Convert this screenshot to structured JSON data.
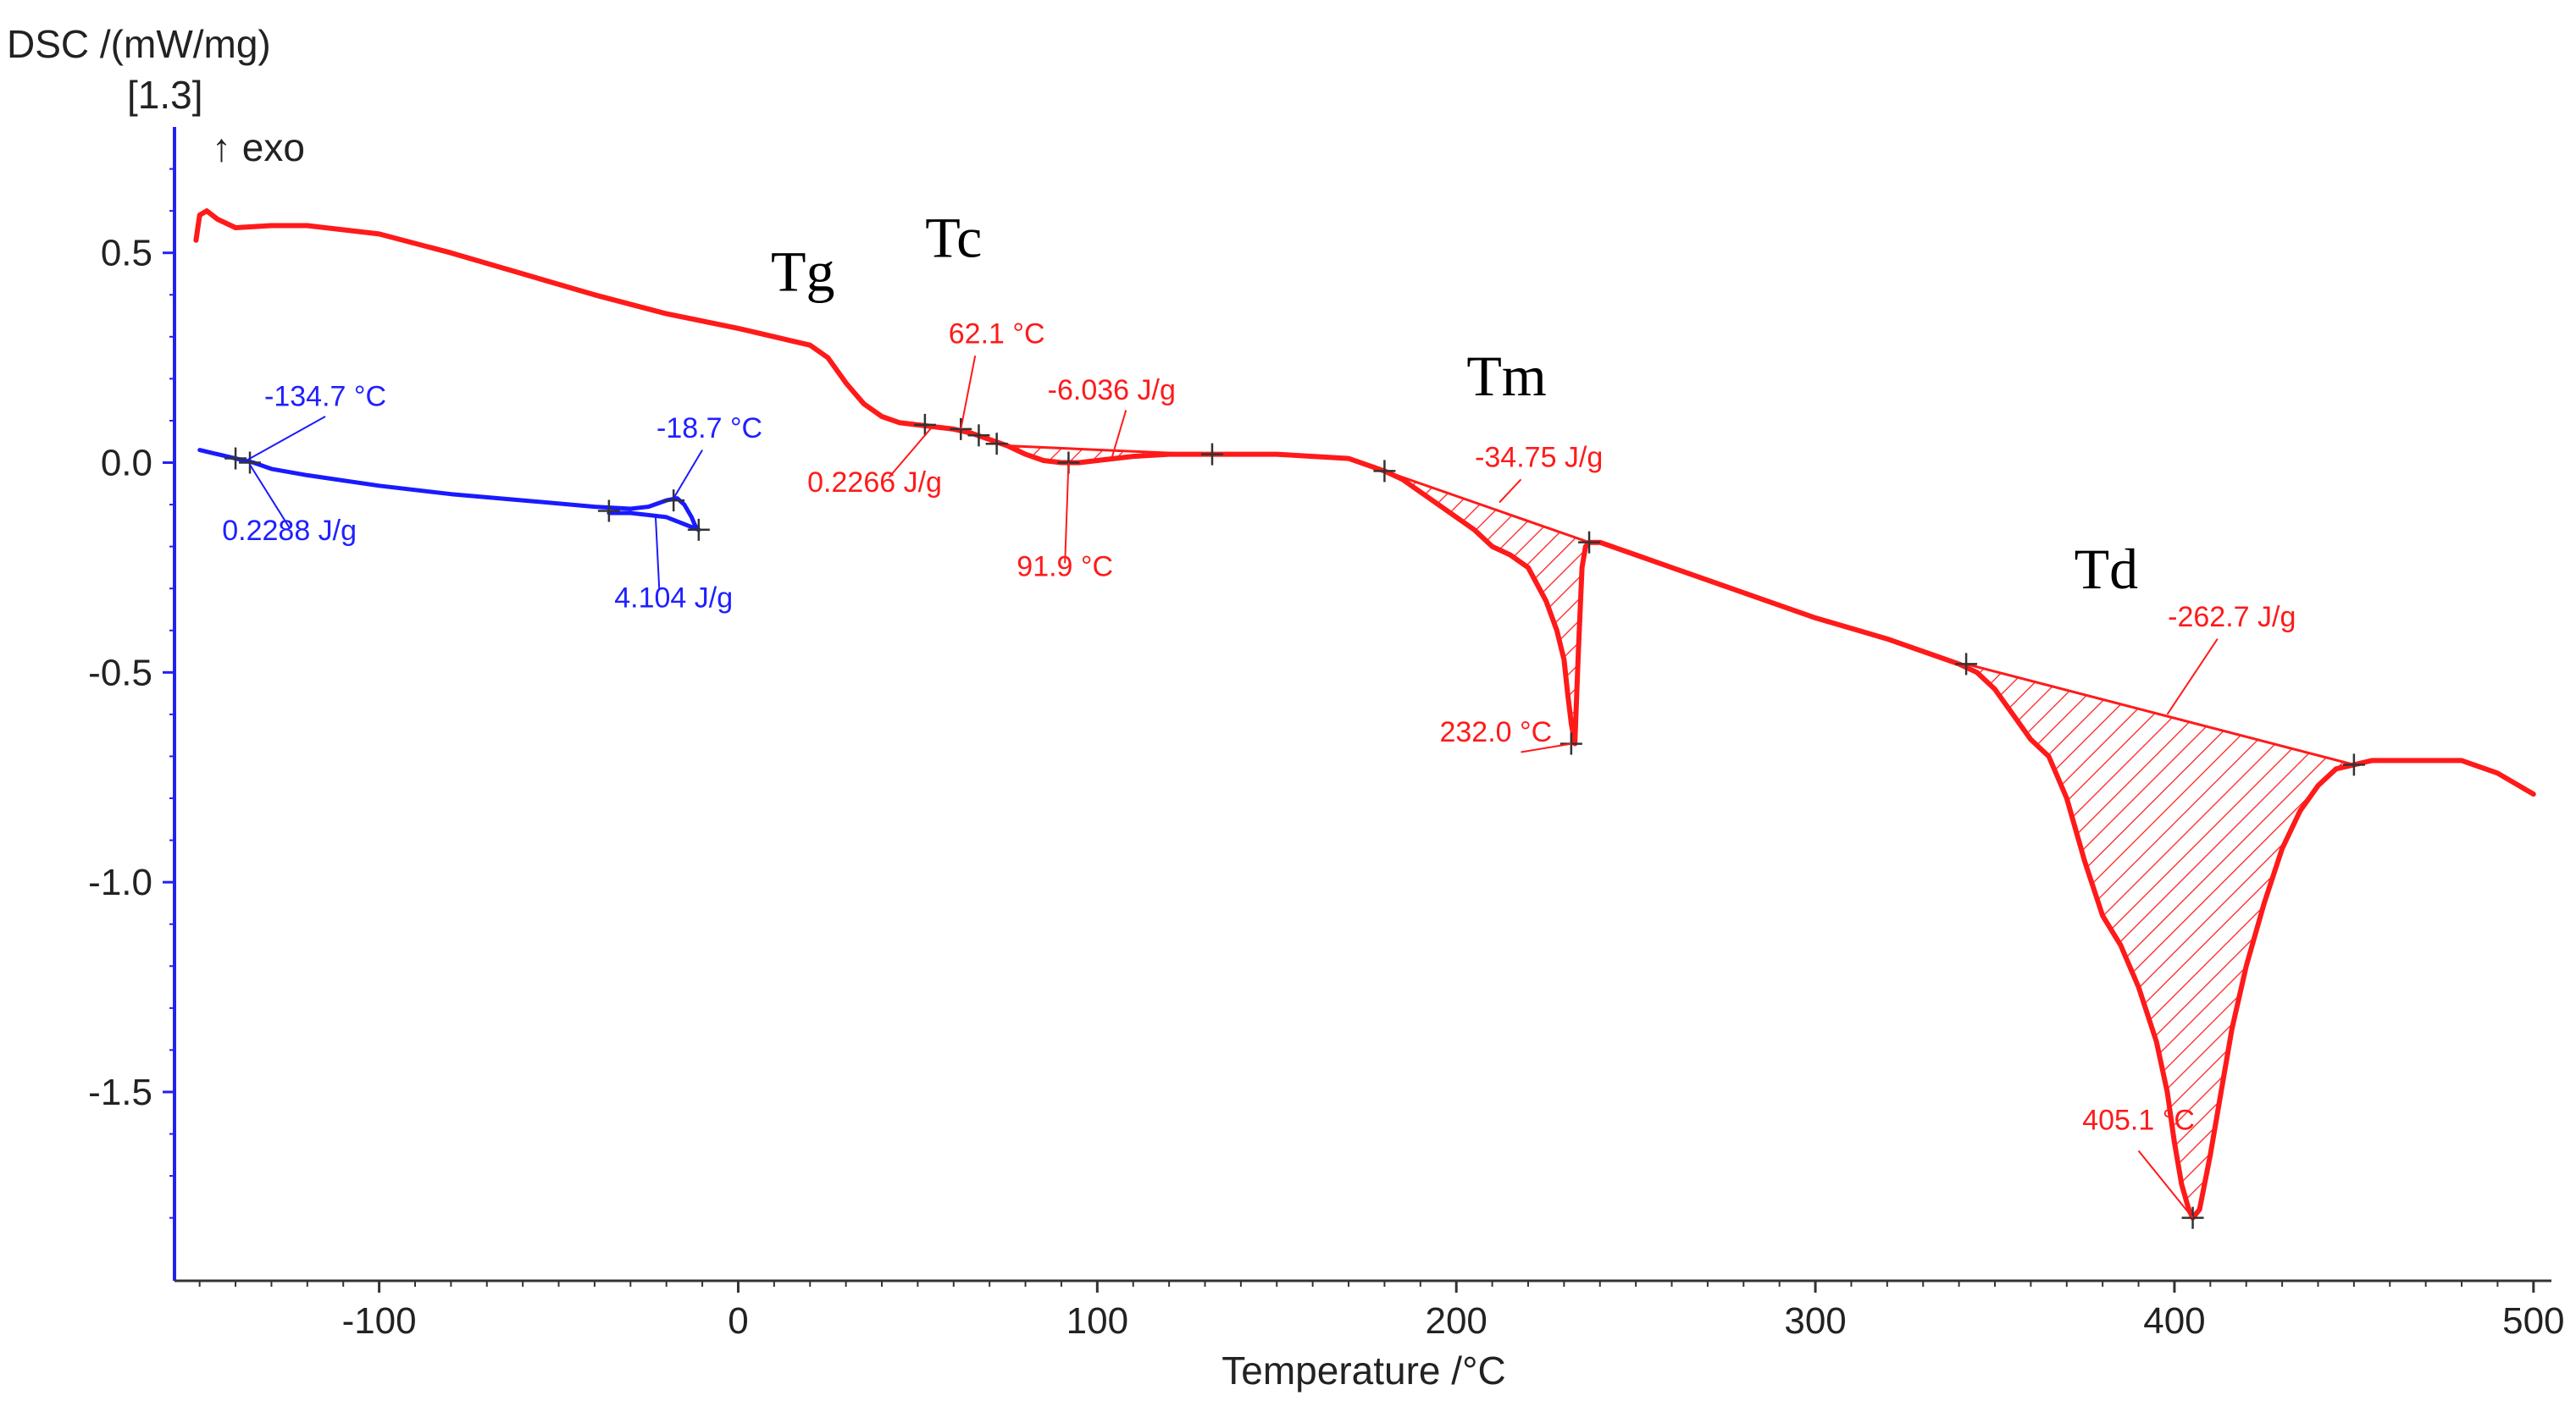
{
  "chart_data": {
    "type": "line",
    "title": "",
    "ylabel_line1": "DSC /(mW/mg)",
    "ylabel_line2": "[1.3]",
    "exo_label": "↑ exo",
    "xlabel": "Temperature /°C",
    "xlim": [
      -157,
      505
    ],
    "ylim": [
      -1.95,
      0.8
    ],
    "x_ticks": [
      -100,
      0,
      100,
      200,
      300,
      400,
      500
    ],
    "y_ticks": [
      0.5,
      0.0,
      -0.5,
      -1.0,
      -1.5
    ],
    "x_tick_labels": [
      "-100",
      "0",
      "100",
      "200",
      "300",
      "400",
      "500"
    ],
    "y_tick_labels": [
      "0.5",
      "0.0",
      "-0.5",
      "-1.0",
      "-1.5"
    ],
    "colors": {
      "heating": "#ff1a1a",
      "cooling": "#1a1aff",
      "axis": "#2222ee"
    },
    "series": [
      {
        "name": "red heating curve",
        "x": [
          -151,
          -150,
          -148,
          -145,
          -140,
          -130,
          -120,
          -100,
          -80,
          -60,
          -40,
          -20,
          0,
          10,
          15,
          20,
          25,
          30,
          35,
          40,
          45,
          50,
          55,
          60,
          65,
          70,
          75,
          80,
          85,
          90,
          95,
          100,
          110,
          120,
          130,
          140,
          150,
          160,
          170,
          180,
          185,
          190,
          195,
          200,
          205,
          210,
          215,
          220,
          225,
          228,
          230,
          231,
          232,
          233,
          234,
          235,
          236,
          237,
          238,
          240,
          250,
          260,
          280,
          300,
          320,
          340,
          345,
          350,
          355,
          360,
          365,
          370,
          375,
          380,
          385,
          390,
          395,
          398,
          400,
          402,
          404,
          405.1,
          407,
          410,
          413,
          416,
          420,
          425,
          430,
          435,
          440,
          445,
          450,
          455,
          460,
          470,
          480,
          490,
          500
        ],
        "y": [
          0.53,
          0.59,
          0.6,
          0.58,
          0.56,
          0.565,
          0.565,
          0.545,
          0.5,
          0.45,
          0.4,
          0.355,
          0.32,
          0.3,
          0.29,
          0.28,
          0.25,
          0.19,
          0.14,
          0.11,
          0.095,
          0.09,
          0.085,
          0.08,
          0.07,
          0.055,
          0.04,
          0.02,
          0.005,
          0.0,
          0.0,
          0.005,
          0.015,
          0.02,
          0.02,
          0.02,
          0.02,
          0.015,
          0.01,
          -0.02,
          -0.04,
          -0.07,
          -0.1,
          -0.13,
          -0.16,
          -0.2,
          -0.22,
          -0.25,
          -0.33,
          -0.4,
          -0.47,
          -0.55,
          -0.62,
          -0.67,
          -0.45,
          -0.25,
          -0.2,
          -0.19,
          -0.19,
          -0.19,
          -0.22,
          -0.25,
          -0.31,
          -0.37,
          -0.42,
          -0.48,
          -0.5,
          -0.54,
          -0.6,
          -0.66,
          -0.7,
          -0.8,
          -0.95,
          -1.08,
          -1.15,
          -1.25,
          -1.38,
          -1.5,
          -1.62,
          -1.72,
          -1.78,
          -1.8,
          -1.78,
          -1.65,
          -1.5,
          -1.35,
          -1.2,
          -1.05,
          -0.92,
          -0.83,
          -0.77,
          -0.73,
          -0.72,
          -0.71,
          -0.71,
          -0.71,
          -0.71,
          -0.74,
          -0.79
        ]
      },
      {
        "name": "blue cooling curve",
        "x": [
          -150,
          -145,
          -140,
          -135,
          -130,
          -120,
          -100,
          -80,
          -60,
          -40,
          -30,
          -25,
          -20,
          -17,
          -15,
          -13,
          -12,
          -11
        ],
        "y": [
          0.03,
          0.02,
          0.01,
          0.0,
          -0.015,
          -0.03,
          -0.055,
          -0.075,
          -0.09,
          -0.105,
          -0.11,
          -0.105,
          -0.09,
          -0.085,
          -0.1,
          -0.13,
          -0.15,
          -0.16
        ]
      },
      {
        "name": "blue cooling return",
        "x": [
          -11,
          -20,
          -30,
          -36
        ],
        "y": [
          -0.16,
          -0.13,
          -0.12,
          -0.12
        ]
      }
    ],
    "shaded_regions": [
      {
        "name": "Tc baseline area",
        "x": [
          75,
          80,
          85,
          90,
          95,
          100,
          110,
          120,
          128
        ],
        "y_curve": [
          0.04,
          0.02,
          0.005,
          0.0,
          0.0,
          0.005,
          0.015,
          0.02,
          0.02
        ],
        "baseline_x": [
          75,
          128
        ],
        "baseline_y": [
          0.04,
          0.02
        ]
      },
      {
        "name": "Tm peak area",
        "x": [
          180,
          185,
          190,
          195,
          200,
          205,
          210,
          215,
          220,
          225,
          228,
          230,
          231,
          232,
          233,
          234,
          235,
          236,
          237
        ],
        "y_curve": [
          -0.02,
          -0.04,
          -0.07,
          -0.1,
          -0.13,
          -0.16,
          -0.2,
          -0.22,
          -0.25,
          -0.33,
          -0.4,
          -0.47,
          -0.55,
          -0.62,
          -0.67,
          -0.45,
          -0.25,
          -0.2,
          -0.19
        ],
        "baseline_x": [
          180,
          237
        ],
        "baseline_y": [
          -0.02,
          -0.19
        ]
      },
      {
        "name": "Td peak area",
        "x": [
          342,
          345,
          350,
          355,
          360,
          365,
          370,
          375,
          380,
          385,
          390,
          395,
          398,
          400,
          402,
          404,
          405.1,
          407,
          410,
          413,
          416,
          420,
          425,
          430,
          435,
          440,
          445,
          450
        ],
        "y_curve": [
          -0.48,
          -0.5,
          -0.54,
          -0.6,
          -0.66,
          -0.7,
          -0.8,
          -0.95,
          -1.08,
          -1.15,
          -1.25,
          -1.38,
          -1.5,
          -1.62,
          -1.72,
          -1.78,
          -1.8,
          -1.78,
          -1.65,
          -1.5,
          -1.35,
          -1.2,
          -1.05,
          -0.92,
          -0.83,
          -0.77,
          -0.73,
          -0.72
        ],
        "baseline_x": [
          342,
          450
        ],
        "baseline_y": [
          -0.48,
          -0.72
        ]
      }
    ],
    "markers": {
      "red": [
        [
          52,
          0.09
        ],
        [
          62,
          0.08
        ],
        [
          67,
          0.065
        ],
        [
          72,
          0.045
        ],
        [
          92,
          0.0
        ],
        [
          132,
          0.02
        ],
        [
          180,
          -0.02
        ],
        [
          232,
          -0.67
        ],
        [
          237,
          -0.19
        ],
        [
          342,
          -0.48
        ],
        [
          405.1,
          -1.8
        ],
        [
          450,
          -0.72
        ]
      ],
      "blue": [
        [
          -140,
          0.01
        ],
        [
          -136,
          0.0
        ],
        [
          -36,
          -0.115
        ],
        [
          -18,
          -0.09
        ],
        [
          -11,
          -0.16
        ]
      ]
    },
    "phase_labels": [
      {
        "text": "Tg",
        "x": 18,
        "y": 0.41
      },
      {
        "text": "Tc",
        "x": 60,
        "y": 0.49
      },
      {
        "text": "Tm",
        "x": 214,
        "y": 0.16
      },
      {
        "text": "Td",
        "x": 381,
        "y": -0.3
      }
    ],
    "annotations": [
      {
        "text": "-134.7 °C",
        "color": "cooling",
        "anchor": "middle",
        "tx": -115,
        "ty": 0.135,
        "lx1": -137,
        "ly1": 0.005,
        "lx2": -115,
        "ly2": 0.11
      },
      {
        "text": "0.2288 J/g",
        "color": "cooling",
        "anchor": "middle",
        "tx": -125,
        "ty": -0.185,
        "lx1": -136,
        "ly1": -0.005,
        "lx2": -125,
        "ly2": -0.155
      },
      {
        "text": "-18.7 °C",
        "color": "cooling",
        "anchor": "middle",
        "tx": -8,
        "ty": 0.06,
        "lx1": -18,
        "ly1": -0.085,
        "lx2": -10,
        "ly2": 0.03
      },
      {
        "text": "4.104 J/g",
        "color": "cooling",
        "anchor": "middle",
        "tx": -18,
        "ty": -0.345,
        "lx1": -23,
        "ly1": -0.13,
        "lx2": -22,
        "ly2": -0.3
      },
      {
        "text": "62.1 °C",
        "color": "heating",
        "anchor": "middle",
        "tx": 72,
        "ty": 0.285,
        "lx1": 62,
        "ly1": 0.08,
        "lx2": 66,
        "ly2": 0.255
      },
      {
        "text": "0.2266 J/g",
        "color": "heating",
        "anchor": "middle",
        "tx": 38,
        "ty": -0.07,
        "lx1": 54,
        "ly1": 0.085,
        "lx2": 42,
        "ly2": -0.035
      },
      {
        "text": "-6.036 J/g",
        "color": "heating",
        "anchor": "middle",
        "tx": 104,
        "ty": 0.15,
        "lx1": 104,
        "ly1": 0.01,
        "lx2": 108,
        "ly2": 0.125
      },
      {
        "text": "91.9 °C",
        "color": "heating",
        "anchor": "middle",
        "tx": 91,
        "ty": -0.27,
        "lx1": 92,
        "ly1": 0.0,
        "lx2": 91,
        "ly2": -0.24
      },
      {
        "text": "-34.75 J/g",
        "color": "heating",
        "anchor": "middle",
        "tx": 223,
        "ty": -0.01,
        "lx1": 212,
        "ly1": -0.095,
        "lx2": 218,
        "ly2": -0.04
      },
      {
        "text": "232.0 °C",
        "color": "heating",
        "anchor": "middle",
        "tx": 211,
        "ty": -0.665,
        "lx1": 232,
        "ly1": -0.67,
        "lx2": 218,
        "ly2": -0.69
      },
      {
        "text": "-262.7 J/g",
        "color": "heating",
        "anchor": "middle",
        "tx": 416,
        "ty": -0.39,
        "lx1": 398,
        "ly1": -0.6,
        "lx2": 412,
        "ly2": -0.42
      },
      {
        "text": "405.1 °C",
        "color": "heating",
        "anchor": "middle",
        "tx": 390,
        "ty": -1.59,
        "lx1": 405.1,
        "ly1": -1.8,
        "lx2": 390,
        "ly2": -1.64
      }
    ]
  }
}
